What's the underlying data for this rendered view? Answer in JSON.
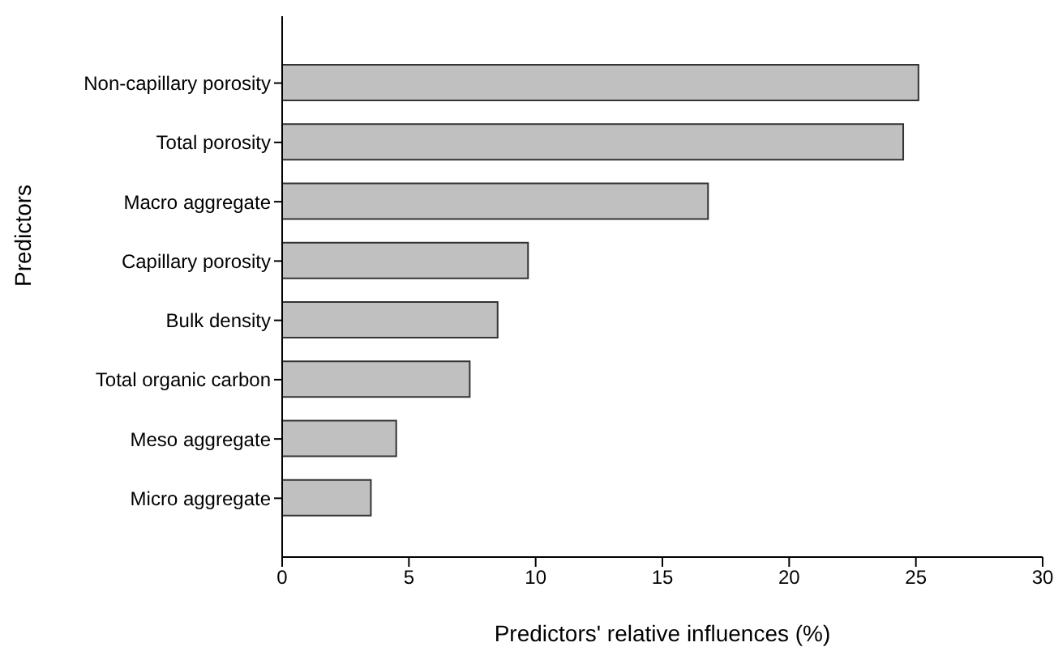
{
  "chart_data": {
    "type": "bar",
    "orientation": "horizontal",
    "categories": [
      "Non-capillary porosity",
      "Total porosity",
      "Macro aggregate",
      "Capillary porosity",
      "Bulk density",
      "Total organic carbon",
      "Meso aggregate",
      "Micro aggregate"
    ],
    "values": [
      25.1,
      24.5,
      16.8,
      9.7,
      8.5,
      7.4,
      4.5,
      3.5
    ],
    "color": "#c0c0c0",
    "xlabel": "Predictors' relative influences (%)",
    "ylabel": "Predictors",
    "xlim": [
      0,
      30
    ],
    "xticks": [
      0,
      5,
      10,
      15,
      20,
      25,
      30
    ]
  }
}
